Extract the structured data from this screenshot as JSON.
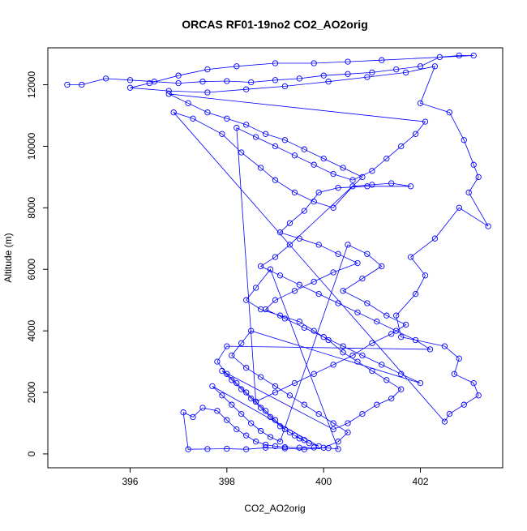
{
  "chart_data": {
    "type": "scatter",
    "title": "ORCAS RF01-19no2 CO2_AO2orig",
    "xlabel": "CO2_AO2orig",
    "ylabel": "Altitude (m)",
    "xlim": [
      394.3,
      403.7
    ],
    "ylim": [
      -450,
      13200
    ],
    "xticks": [
      396,
      398,
      400,
      402
    ],
    "yticks": [
      0,
      2000,
      4000,
      6000,
      8000,
      10000,
      12000
    ],
    "grid": false,
    "marker": "open-circle",
    "series_color": "#0000ff",
    "series": [
      {
        "points": [
          [
            394.7,
            12000
          ],
          [
            395.0,
            12000
          ],
          [
            395.5,
            12200
          ],
          [
            396.0,
            12150
          ],
          [
            396.5,
            12100
          ],
          [
            397.0,
            12050
          ],
          [
            397.5,
            12100
          ],
          [
            398.0,
            12120
          ],
          [
            398.5,
            12080
          ],
          [
            399.0,
            12150
          ],
          [
            399.5,
            12200
          ],
          [
            400.0,
            12300
          ],
          [
            400.5,
            12350
          ],
          [
            401.0,
            12400
          ],
          [
            401.5,
            12500
          ],
          [
            402.0,
            12600
          ],
          [
            402.4,
            12900
          ],
          [
            402.8,
            12950
          ],
          [
            403.1,
            12950
          ],
          [
            401.2,
            12800
          ],
          [
            400.5,
            12750
          ],
          [
            399.8,
            12700
          ],
          [
            399.0,
            12700
          ],
          [
            398.2,
            12600
          ],
          [
            397.6,
            12500
          ],
          [
            397.0,
            12300
          ],
          [
            396.4,
            12050
          ],
          [
            396.0,
            11900
          ],
          [
            396.8,
            11800
          ],
          [
            397.6,
            11750
          ],
          [
            398.4,
            11850
          ],
          [
            399.2,
            11950
          ],
          [
            400.1,
            12100
          ],
          [
            400.9,
            12250
          ],
          [
            401.7,
            12400
          ],
          [
            402.3,
            12600
          ],
          [
            402.0,
            11400
          ],
          [
            402.6,
            11100
          ],
          [
            402.9,
            10200
          ],
          [
            403.1,
            9400
          ],
          [
            403.2,
            9000
          ],
          [
            403.0,
            8500
          ],
          [
            403.4,
            7400
          ],
          [
            402.8,
            8000
          ],
          [
            402.3,
            7000
          ],
          [
            401.8,
            6400
          ],
          [
            402.1,
            5800
          ],
          [
            401.9,
            5200
          ],
          [
            401.5,
            4500
          ],
          [
            401.6,
            3800
          ],
          [
            402.5,
            3500
          ],
          [
            402.8,
            3100
          ],
          [
            402.7,
            2600
          ],
          [
            403.1,
            2300
          ],
          [
            403.2,
            1900
          ],
          [
            402.9,
            1600
          ],
          [
            402.6,
            1300
          ],
          [
            402.5,
            1050
          ],
          [
            396.9,
            11100
          ],
          [
            397.3,
            10900
          ],
          [
            397.9,
            10400
          ],
          [
            398.3,
            9800
          ],
          [
            398.7,
            9300
          ],
          [
            399.0,
            8900
          ],
          [
            399.4,
            8500
          ],
          [
            399.8,
            8200
          ],
          [
            400.2,
            8000
          ],
          [
            400.6,
            8700
          ],
          [
            401.0,
            8750
          ],
          [
            401.4,
            8800
          ],
          [
            401.8,
            8700
          ],
          [
            400.9,
            8700
          ],
          [
            400.3,
            8650
          ],
          [
            399.9,
            8500
          ],
          [
            399.6,
            7900
          ],
          [
            399.3,
            7500
          ],
          [
            399.1,
            7200
          ],
          [
            399.5,
            7000
          ],
          [
            399.9,
            6800
          ],
          [
            400.3,
            6500
          ],
          [
            400.7,
            6200
          ],
          [
            400.2,
            5900
          ],
          [
            399.8,
            5600
          ],
          [
            399.4,
            5300
          ],
          [
            399.0,
            5000
          ],
          [
            398.8,
            4700
          ],
          [
            399.2,
            4400
          ],
          [
            399.6,
            4100
          ],
          [
            400.0,
            3800
          ],
          [
            400.4,
            3500
          ],
          [
            400.8,
            3200
          ],
          [
            401.2,
            2900
          ],
          [
            401.6,
            2600
          ],
          [
            402.0,
            2300
          ],
          [
            398.5,
            4000
          ],
          [
            398.3,
            3600
          ],
          [
            398.1,
            3200
          ],
          [
            398.4,
            2800
          ],
          [
            398.7,
            2500
          ],
          [
            399.0,
            2200
          ],
          [
            399.3,
            1900
          ],
          [
            399.6,
            1600
          ],
          [
            399.9,
            1300
          ],
          [
            400.2,
            1000
          ],
          [
            400.5,
            700
          ],
          [
            400.3,
            400
          ],
          [
            400.0,
            200
          ],
          [
            399.6,
            150
          ],
          [
            399.2,
            180
          ],
          [
            398.8,
            200
          ],
          [
            398.4,
            150
          ],
          [
            398.0,
            170
          ],
          [
            397.6,
            160
          ],
          [
            397.2,
            150
          ],
          [
            397.1,
            1350
          ],
          [
            397.3,
            1200
          ],
          [
            397.5,
            1500
          ],
          [
            397.8,
            1400
          ],
          [
            398.0,
            1100
          ],
          [
            398.2,
            800
          ],
          [
            398.4,
            600
          ],
          [
            398.6,
            400
          ],
          [
            398.8,
            300
          ],
          [
            399.0,
            250
          ],
          [
            399.2,
            220
          ],
          [
            399.5,
            200
          ],
          [
            399.8,
            210
          ],
          [
            400.1,
            190
          ],
          [
            400.3,
            160
          ],
          [
            398.9,
            6000
          ],
          [
            398.6,
            5400
          ],
          [
            398.4,
            5000
          ],
          [
            398.7,
            4700
          ],
          [
            399.1,
            4500
          ],
          [
            399.5,
            4300
          ],
          [
            399.8,
            4000
          ],
          [
            400.1,
            3700
          ],
          [
            400.4,
            3300
          ],
          [
            400.7,
            3000
          ],
          [
            401.0,
            2700
          ],
          [
            401.3,
            2400
          ],
          [
            401.6,
            2100
          ],
          [
            401.4,
            1800
          ],
          [
            401.1,
            1600
          ],
          [
            400.8,
            1300
          ],
          [
            400.5,
            1000
          ],
          [
            400.2,
            800
          ],
          [
            397.9,
            2700
          ],
          [
            398.1,
            2400
          ],
          [
            398.3,
            2100
          ],
          [
            398.5,
            1800
          ],
          [
            398.7,
            1500
          ],
          [
            398.9,
            1200
          ],
          [
            399.1,
            900
          ],
          [
            399.3,
            700
          ],
          [
            399.5,
            500
          ],
          [
            399.7,
            350
          ],
          [
            399.9,
            250
          ],
          [
            397.7,
            2200
          ],
          [
            397.9,
            1900
          ],
          [
            398.1,
            1600
          ],
          [
            398.3,
            1300
          ],
          [
            398.5,
            1000
          ],
          [
            398.7,
            750
          ],
          [
            398.9,
            550
          ],
          [
            399.1,
            400
          ],
          [
            400.5,
            6800
          ],
          [
            400.9,
            6500
          ],
          [
            401.2,
            6100
          ],
          [
            400.8,
            5700
          ],
          [
            400.4,
            5300
          ],
          [
            400.9,
            4900
          ],
          [
            401.3,
            4500
          ],
          [
            401.7,
            4200
          ],
          [
            401.4,
            3900
          ],
          [
            401.0,
            3600
          ],
          [
            400.6,
            3200
          ],
          [
            400.2,
            2900
          ],
          [
            399.8,
            2600
          ],
          [
            399.4,
            2300
          ],
          [
            399.0,
            2000
          ],
          [
            398.6,
            1700
          ],
          [
            398.2,
            10600
          ],
          [
            398.6,
            10300
          ],
          [
            399.0,
            10000
          ],
          [
            399.4,
            9700
          ],
          [
            399.8,
            9400
          ],
          [
            400.2,
            9100
          ],
          [
            400.6,
            8900
          ],
          [
            401.0,
            9200
          ],
          [
            401.3,
            9600
          ],
          [
            401.6,
            10000
          ],
          [
            401.9,
            10400
          ],
          [
            402.1,
            10800
          ],
          [
            396.8,
            11700
          ],
          [
            397.2,
            11400
          ],
          [
            397.6,
            11100
          ],
          [
            398.0,
            10900
          ],
          [
            398.4,
            10700
          ],
          [
            398.8,
            10400
          ],
          [
            399.2,
            10200
          ],
          [
            399.6,
            9900
          ],
          [
            400.0,
            9600
          ],
          [
            400.4,
            9300
          ],
          [
            400.8,
            9000
          ],
          [
            399.3,
            6800
          ],
          [
            399.0,
            6400
          ],
          [
            398.7,
            6100
          ],
          [
            399.1,
            5800
          ],
          [
            399.5,
            5500
          ],
          [
            399.9,
            5200
          ],
          [
            400.3,
            4900
          ],
          [
            400.7,
            4600
          ],
          [
            401.1,
            4300
          ],
          [
            401.5,
            4000
          ],
          [
            401.9,
            3700
          ],
          [
            402.2,
            3400
          ],
          [
            398.0,
            3500
          ],
          [
            397.8,
            3000
          ],
          [
            398.0,
            2600
          ],
          [
            398.2,
            2300
          ],
          [
            398.4,
            2000
          ],
          [
            398.6,
            1700
          ],
          [
            398.8,
            1400
          ],
          [
            399.0,
            1100
          ],
          [
            399.2,
            800
          ],
          [
            399.4,
            600
          ],
          [
            399.6,
            450
          ]
        ]
      }
    ]
  }
}
